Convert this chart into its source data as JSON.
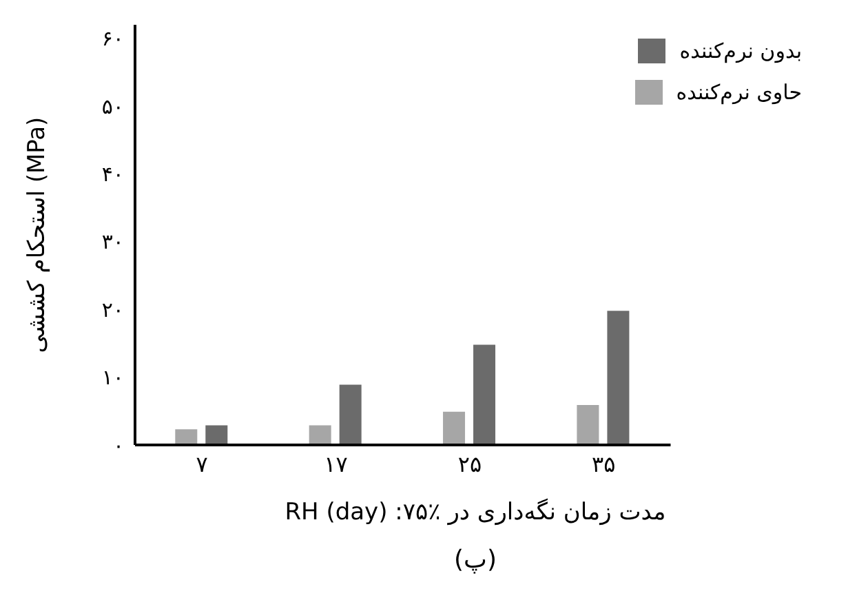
{
  "chart_data": {
    "type": "bar",
    "ylabel": "استحکام کششی (MPa)",
    "xlabel": "مدت زمان نگه‌داری در ٪۷۵: RH (day)",
    "annotations": [
      "(پ)"
    ],
    "categories": [
      "۷",
      "۱۷",
      "۲۵",
      "۳۵"
    ],
    "series": [
      {
        "name": "بدون نرم‌کننده",
        "color": "#6b6b6b",
        "values": [
          2.9,
          8.9,
          14.8,
          19.8
        ]
      },
      {
        "name": "حاوی نرم‌کننده",
        "color": "#a6a6a6",
        "values": [
          2.3,
          2.9,
          4.9,
          5.9
        ]
      }
    ],
    "ylim": [
      0,
      62
    ],
    "yticks": [
      {
        "value": 0,
        "label": "۰"
      },
      {
        "value": 10,
        "label": "۱۰"
      },
      {
        "value": 20,
        "label": "۲۰"
      },
      {
        "value": 30,
        "label": "۳۰"
      },
      {
        "value": 40,
        "label": "۴۰"
      },
      {
        "value": 50,
        "label": "۵۰"
      },
      {
        "value": 60,
        "label": "۶۰"
      }
    ],
    "legend": "top right",
    "grid": false
  }
}
